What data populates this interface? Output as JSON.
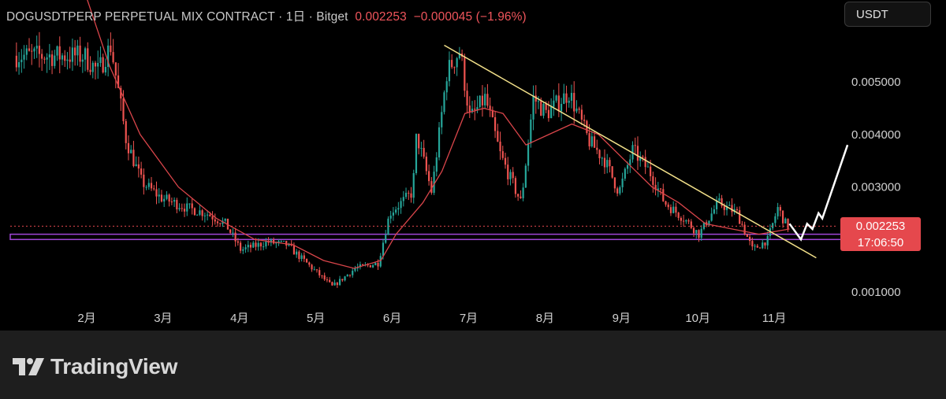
{
  "header": {
    "symbol": "DOGUSDTPERP PERPETUAL MIX CONTRACT",
    "interval": "1日",
    "exchange": "Bitget",
    "separator": "·",
    "last_price": "0.002253",
    "change": "−0.000045",
    "change_pct": "(−1.96%)"
  },
  "currency_button": "USDT",
  "price_tag": {
    "price": "0.002253",
    "countdown": "17:06:50"
  },
  "brand": {
    "name": "TradingView"
  },
  "colors": {
    "background": "#000000",
    "up_candle": "#26a69a",
    "down_candle": "#ef5350",
    "moving_average": "#d9454a",
    "trendline": "#f3e18a",
    "support_zone": "#a046d8",
    "current_price": "#e5484d",
    "projection": "#ffffff"
  },
  "chart_data": {
    "type": "candlestick",
    "title": "DOGUSDTPERP PERPETUAL MIX CONTRACT · 1日 · Bitget",
    "x_tick_labels": [
      "2月",
      "3月",
      "4月",
      "5月",
      "6月",
      "7月",
      "8月",
      "9月",
      "10月",
      "11月"
    ],
    "y_tick_labels": [
      "0.001000",
      "0.003000",
      "0.004000",
      "0.005000"
    ],
    "ylim": [
      0.0005,
      0.0062
    ],
    "last_price": 0.002253,
    "price_path": [
      {
        "x": 0.0,
        "price": 0.0055
      },
      {
        "x": 0.18,
        "price": 0.0052
      },
      {
        "x": 0.35,
        "price": 0.0057
      },
      {
        "x": 0.55,
        "price": 0.0039
      },
      {
        "x": 0.75,
        "price": 0.0031
      },
      {
        "x": 1.0,
        "price": 0.0028
      },
      {
        "x": 1.35,
        "price": 0.0026
      },
      {
        "x": 1.6,
        "price": 0.0025
      },
      {
        "x": 1.85,
        "price": 0.0023
      },
      {
        "x": 2.05,
        "price": 0.0018
      },
      {
        "x": 2.4,
        "price": 0.00195
      },
      {
        "x": 2.65,
        "price": 0.0019
      },
      {
        "x": 2.95,
        "price": 0.0015
      },
      {
        "x": 3.25,
        "price": 0.0011
      },
      {
        "x": 3.55,
        "price": 0.00145
      },
      {
        "x": 3.85,
        "price": 0.00155
      },
      {
        "x": 4.0,
        "price": 0.0025
      },
      {
        "x": 4.3,
        "price": 0.0029
      },
      {
        "x": 4.35,
        "price": 0.004
      },
      {
        "x": 4.55,
        "price": 0.0029
      },
      {
        "x": 4.75,
        "price": 0.0052
      },
      {
        "x": 4.92,
        "price": 0.0056
      },
      {
        "x": 5.05,
        "price": 0.0043
      },
      {
        "x": 5.25,
        "price": 0.0047
      },
      {
        "x": 5.45,
        "price": 0.0036
      },
      {
        "x": 5.72,
        "price": 0.0027
      },
      {
        "x": 5.88,
        "price": 0.0047
      },
      {
        "x": 6.05,
        "price": 0.0044
      },
      {
        "x": 6.35,
        "price": 0.0048
      },
      {
        "x": 6.6,
        "price": 0.0039
      },
      {
        "x": 6.82,
        "price": 0.0035
      },
      {
        "x": 7.0,
        "price": 0.0029
      },
      {
        "x": 7.18,
        "price": 0.0037
      },
      {
        "x": 7.4,
        "price": 0.0033
      },
      {
        "x": 7.6,
        "price": 0.0027
      },
      {
        "x": 7.85,
        "price": 0.0024
      },
      {
        "x": 8.05,
        "price": 0.0021
      },
      {
        "x": 8.3,
        "price": 0.0027
      },
      {
        "x": 8.55,
        "price": 0.0025
      },
      {
        "x": 8.75,
        "price": 0.0018
      },
      {
        "x": 8.95,
        "price": 0.002
      },
      {
        "x": 9.08,
        "price": 0.0026
      },
      {
        "x": 9.2,
        "price": 0.00225
      }
    ],
    "moving_average": [
      {
        "x": 0.0,
        "price": 0.0066
      },
      {
        "x": 0.3,
        "price": 0.0053
      },
      {
        "x": 0.7,
        "price": 0.004
      },
      {
        "x": 1.2,
        "price": 0.003
      },
      {
        "x": 1.7,
        "price": 0.0024
      },
      {
        "x": 2.2,
        "price": 0.002
      },
      {
        "x": 2.7,
        "price": 0.0019
      },
      {
        "x": 3.1,
        "price": 0.0016
      },
      {
        "x": 3.5,
        "price": 0.00145
      },
      {
        "x": 3.85,
        "price": 0.0016
      },
      {
        "x": 4.05,
        "price": 0.0021
      },
      {
        "x": 4.4,
        "price": 0.0027
      },
      {
        "x": 4.65,
        "price": 0.0033
      },
      {
        "x": 4.95,
        "price": 0.0044
      },
      {
        "x": 5.2,
        "price": 0.0045
      },
      {
        "x": 5.45,
        "price": 0.0044
      },
      {
        "x": 5.75,
        "price": 0.0038
      },
      {
        "x": 6.05,
        "price": 0.004
      },
      {
        "x": 6.35,
        "price": 0.0042
      },
      {
        "x": 6.7,
        "price": 0.004
      },
      {
        "x": 7.05,
        "price": 0.0035
      },
      {
        "x": 7.4,
        "price": 0.003
      },
      {
        "x": 7.75,
        "price": 0.0027
      },
      {
        "x": 8.1,
        "price": 0.0023
      },
      {
        "x": 8.45,
        "price": 0.0022
      },
      {
        "x": 8.8,
        "price": 0.0021
      },
      {
        "x": 9.2,
        "price": 0.0022
      }
    ],
    "trendline": [
      {
        "x": 4.68,
        "price": 0.0057
      },
      {
        "x": 9.55,
        "price": 0.00165
      }
    ],
    "support_zone": {
      "from_x": -0.9,
      "to_x": 9.95,
      "top": 0.0021,
      "bottom": 0.002
    },
    "projection_path": [
      {
        "x": 9.2,
        "price": 0.0023
      },
      {
        "x": 9.35,
        "price": 0.002
      },
      {
        "x": 9.43,
        "price": 0.0023
      },
      {
        "x": 9.5,
        "price": 0.0022
      },
      {
        "x": 9.58,
        "price": 0.0025
      },
      {
        "x": 9.63,
        "price": 0.0024
      },
      {
        "x": 9.96,
        "price": 0.0038
      }
    ]
  }
}
